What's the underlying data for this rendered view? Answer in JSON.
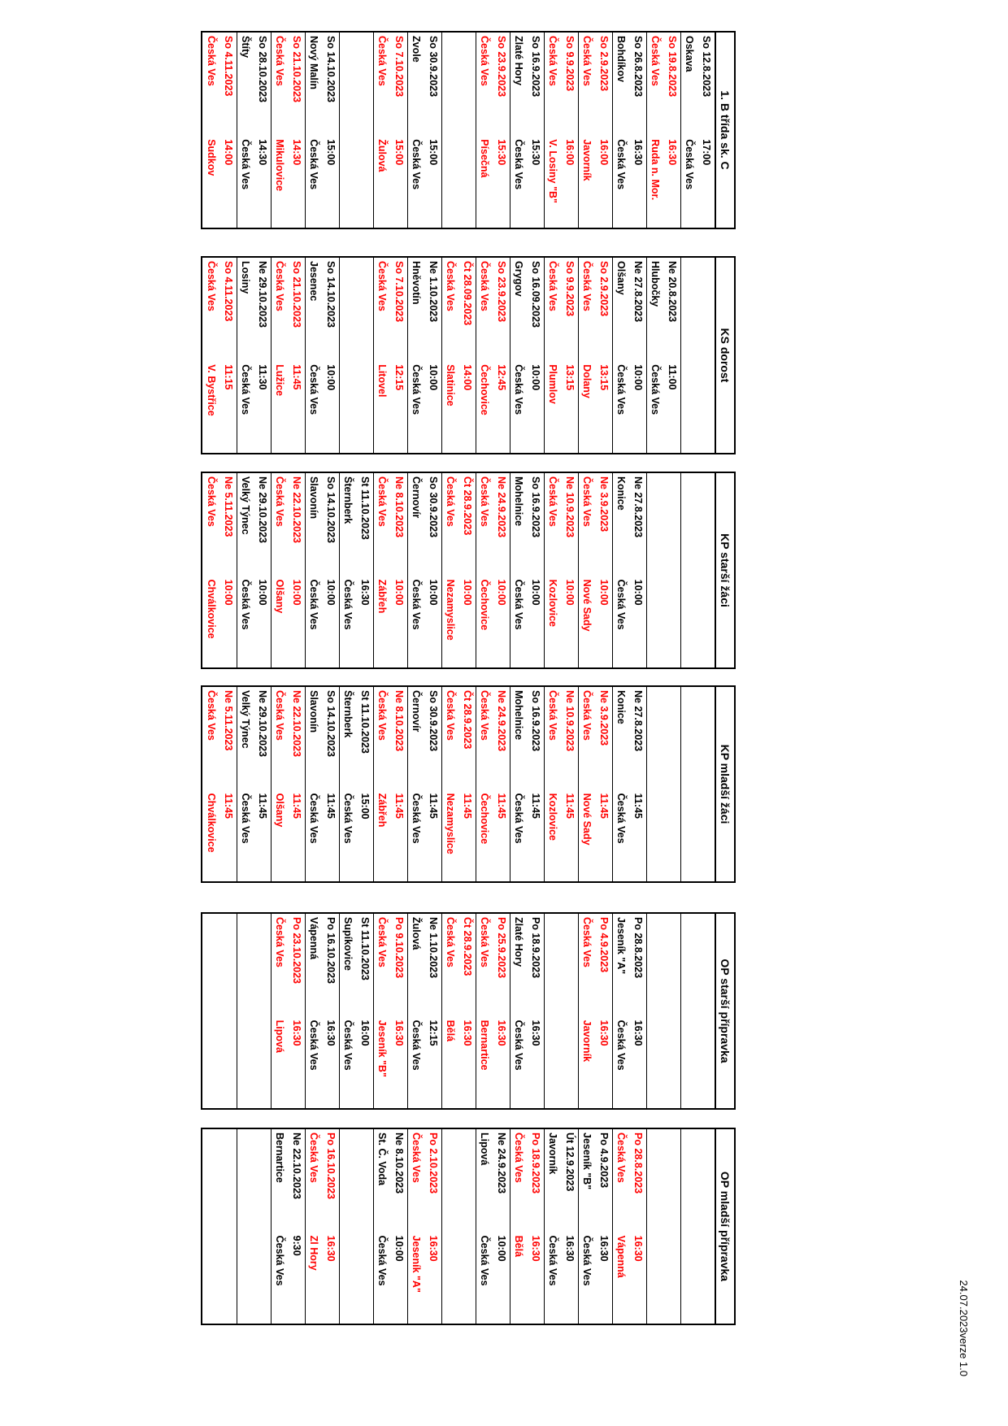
{
  "version_note": "24.07.2023verze 1.0",
  "home_color": "#ff0000",
  "tables": [
    {
      "title": "1. B třída sk. C",
      "rows": [
        {
          "date": "So 12.8.2023",
          "place": "Oskava",
          "time": "17:00",
          "venue": "Česká Ves",
          "home": false
        },
        {
          "date": "So 19.8.2023",
          "place": "Česká Ves",
          "time": "16:30",
          "venue": "Ruda n. Mor.",
          "home": true
        },
        {
          "date": "So 26.8.2023",
          "place": "Bohdíkov",
          "time": "16:30",
          "venue": "Česká Ves",
          "home": false
        },
        {
          "date": "So 2.9.2023",
          "place": "Česká Ves",
          "time": "16:00",
          "venue": "Javorník",
          "home": true
        },
        {
          "date": "So 9.9.2023",
          "place": "Česká Ves",
          "time": "16:00",
          "venue": "V. Losiny \"B\"",
          "home": true
        },
        {
          "date": "So 16.9.2023",
          "place": "Zlaté Hory",
          "time": "15:30",
          "venue": "Česká Ves",
          "home": false
        },
        {
          "date": "So 23.9.2023",
          "place": "Česká Ves",
          "time": "15:30",
          "venue": "Písečná",
          "home": true
        },
        {
          "date": "",
          "place": "",
          "time": "",
          "venue": "",
          "home": false
        },
        {
          "date": "So 30.9.2023",
          "place": "Zvole",
          "time": "15:00",
          "venue": "Česká Ves",
          "home": false
        },
        {
          "date": "So 7.10.2023",
          "place": "Česká Ves",
          "time": "15:00",
          "venue": "Žulová",
          "home": true
        },
        {
          "date": "",
          "place": "",
          "time": "",
          "venue": "",
          "home": false
        },
        {
          "date": "So 14.10.2023",
          "place": "Nový Malín",
          "time": "15:00",
          "venue": "Česká Ves",
          "home": false
        },
        {
          "date": "So 21.10.2023",
          "place": "Česká Ves",
          "time": "14:30",
          "venue": "Mikulovice",
          "home": true
        },
        {
          "date": "So 28.10.2023",
          "place": "Štíty",
          "time": "14:30",
          "venue": "Česká Ves",
          "home": false
        },
        {
          "date": "So 4.11.2023",
          "place": "Česká Ves",
          "time": "14:00",
          "venue": "Sudkov",
          "home": true
        }
      ]
    },
    {
      "title": "KS dorost",
      "rows": [
        {
          "date": "",
          "place": "",
          "time": "",
          "venue": "",
          "home": false
        },
        {
          "date": "Ne 20.8.2023",
          "place": "Hlubočky",
          "time": "11:00",
          "venue": "Česká Ves",
          "home": false
        },
        {
          "date": "Ne 27.8.2023",
          "place": "Olšany",
          "time": "10:00",
          "venue": "Česká Ves",
          "home": false
        },
        {
          "date": "So 2.9.2023",
          "place": "Česká Ves",
          "time": "13:15",
          "venue": "Dolany",
          "home": true
        },
        {
          "date": "So 9.9.2023",
          "place": "Česká Ves",
          "time": "13:15",
          "venue": "Plumlov",
          "home": true
        },
        {
          "date": "So 16.09.2023",
          "place": "Grygov",
          "time": "10:00",
          "venue": "Česká Ves",
          "home": false
        },
        {
          "date": "So 23.9.2023",
          "place": "Česká Ves",
          "time": "12:45",
          "venue": "Čechovice",
          "home": true
        },
        {
          "date": "Čt 28.09.2023",
          "place": "Česká Ves",
          "time": "14:00",
          "venue": "Slatinice",
          "home": true
        },
        {
          "date": "Ne 1.10.2023",
          "place": "Hněvotín",
          "time": "10:00",
          "venue": "Česká Ves",
          "home": false
        },
        {
          "date": "So 7.10.2023",
          "place": "Česká Ves",
          "time": "12:15",
          "venue": "Litovel",
          "home": true
        },
        {
          "date": "",
          "place": "",
          "time": "",
          "venue": "",
          "home": false
        },
        {
          "date": "So 14.10.2023",
          "place": "Jesenec",
          "time": "10:00",
          "venue": "Česká Ves",
          "home": false
        },
        {
          "date": "So 21.10.2023",
          "place": "Česká Ves",
          "time": "11:45",
          "venue": "Lužice",
          "home": true
        },
        {
          "date": "Ne 29.10.2023",
          "place": "Losiny",
          "time": "11:30",
          "venue": "Česká Ves",
          "home": false
        },
        {
          "date": "So 4.11.2023",
          "place": "Česká Ves",
          "time": "11:15",
          "venue": "V. Bystřice",
          "home": true
        }
      ]
    },
    {
      "title": "KP starší žáci",
      "rows": [
        {
          "date": "",
          "place": "",
          "time": "",
          "venue": "",
          "home": false
        },
        {
          "date": "",
          "place": "",
          "time": "",
          "venue": "",
          "home": false
        },
        {
          "date": "Ne 27.8.2023",
          "place": "Konice",
          "time": "10:00",
          "venue": "Česká Ves",
          "home": false
        },
        {
          "date": "Ne 3.9.2023",
          "place": "Česká Ves",
          "time": "10:00",
          "venue": "Nové Sady",
          "home": true
        },
        {
          "date": "Ne 10.9.2023",
          "place": "Česká Ves",
          "time": "10:00",
          "venue": "Kozlovice",
          "home": true
        },
        {
          "date": "So 16.9.2023",
          "place": "Mohelnice",
          "time": "10:00",
          "venue": "Česká Ves",
          "home": false
        },
        {
          "date": "Ne 24.9.2023",
          "place": "Česká Ves",
          "time": "10:00",
          "venue": "Čechovice",
          "home": true
        },
        {
          "date": "Čt 28.9.2023",
          "place": "Česká Ves",
          "time": "10:00",
          "venue": "Nezamyslice",
          "home": true
        },
        {
          "date": "So 30.9.2023",
          "place": "Černovír",
          "time": "10:00",
          "venue": "Česká Ves",
          "home": false
        },
        {
          "date": "Ne 8.10.2023",
          "place": "Česká Ves",
          "time": "10:00",
          "venue": "Zábřeh",
          "home": true
        },
        {
          "date": "St 11.10.2023",
          "place": "Šternberk",
          "time": "16:30",
          "venue": "Česká Ves",
          "home": false
        },
        {
          "date": "So 14.10.2023",
          "place": "Slavonín",
          "time": "10:00",
          "venue": "Česká Ves",
          "home": false
        },
        {
          "date": "Ne 22.10.2023",
          "place": "Česká Ves",
          "time": "10:00",
          "venue": "Olšany",
          "home": true
        },
        {
          "date": "Ne 29.10.2023",
          "place": "Velký Týnec",
          "time": "10:00",
          "venue": "Česká Ves",
          "home": false
        },
        {
          "date": "Ne 5.11.2023",
          "place": "Česká Ves",
          "time": "10:00",
          "venue": "Chválkovice",
          "home": true
        }
      ]
    },
    {
      "title": "KP mladší žáci",
      "rows": [
        {
          "date": "",
          "place": "",
          "time": "",
          "venue": "",
          "home": false
        },
        {
          "date": "",
          "place": "",
          "time": "",
          "venue": "",
          "home": false
        },
        {
          "date": "Ne 27.8.2023",
          "place": "Konice",
          "time": "11:45",
          "venue": "Česká Ves",
          "home": false
        },
        {
          "date": "Ne 3.9.2023",
          "place": "Česká Ves",
          "time": "11:45",
          "venue": "Nové Sady",
          "home": true
        },
        {
          "date": "Ne 10.9.2023",
          "place": "Česká Ves",
          "time": "11:45",
          "venue": "Kozlovice",
          "home": true
        },
        {
          "date": "So 16.9.2023",
          "place": "Mohelnice",
          "time": "11:45",
          "venue": "Česká Ves",
          "home": false
        },
        {
          "date": "Ne 24.9.2023",
          "place": "Česká Ves",
          "time": "11:45",
          "venue": "Čechovice",
          "home": true
        },
        {
          "date": "Čt 28.9.2023",
          "place": "Česká Ves",
          "time": "11:45",
          "venue": "Nezamyslice",
          "home": true
        },
        {
          "date": "So 30.9.2023",
          "place": "Černovír",
          "time": "11:45",
          "venue": "Česká Ves",
          "home": false
        },
        {
          "date": "Ne 8.10.2023",
          "place": "Česká Ves",
          "time": "11:45",
          "venue": "Zábřeh",
          "home": true
        },
        {
          "date": "St 11.10.2023",
          "place": "Šternberk",
          "time": "15:00",
          "venue": "Česká Ves",
          "home": false
        },
        {
          "date": "So 14.10.2023",
          "place": "Slavonín",
          "time": "11:45",
          "venue": "Česká Ves",
          "home": false
        },
        {
          "date": "Ne 22.10.2023",
          "place": "Česká Ves",
          "time": "11:45",
          "venue": "Olšany",
          "home": true
        },
        {
          "date": "Ne 29.10.2023",
          "place": "Velký Týnec",
          "time": "11:45",
          "venue": "Česká Ves",
          "home": false
        },
        {
          "date": "Ne 5.11.2023",
          "place": "Česká Ves",
          "time": "11:45",
          "venue": "Chválkovice",
          "home": true
        }
      ]
    },
    {
      "title": "OP starší přípravka",
      "rows": [
        {
          "date": "",
          "place": "",
          "time": "",
          "venue": "",
          "home": false
        },
        {
          "date": "",
          "place": "",
          "time": "",
          "venue": "",
          "home": false
        },
        {
          "date": "Po 28.8.2023",
          "place": "Jeseník \"A\"",
          "time": "16:30",
          "venue": "Česká Ves",
          "home": false
        },
        {
          "date": "Po 4.9.2023",
          "place": "Česká Ves",
          "time": "16:30",
          "venue": "Javorník",
          "home": true
        },
        {
          "date": "",
          "place": "",
          "time": "",
          "venue": "",
          "home": false
        },
        {
          "date": "Po 18.9.2023",
          "place": "Zlaté Hory",
          "time": "16:30",
          "venue": "Česká Ves",
          "home": false
        },
        {
          "date": "Po 25.9.2023",
          "place": "Česká Ves",
          "time": "16:30",
          "venue": "Bernartice",
          "home": true
        },
        {
          "date": "Čt 28.9.2023",
          "place": "Česká Ves",
          "time": "16:30",
          "venue": "Bělá",
          "home": true
        },
        {
          "date": "Ne 1.10.2023",
          "place": "Žulová",
          "time": "12:15",
          "venue": "Česká Ves",
          "home": false
        },
        {
          "date": "Po 9.10.2023",
          "place": "Česká Ves",
          "time": "16:30",
          "venue": "Jeseník \"B\"",
          "home": true
        },
        {
          "date": "St 11.10.2023",
          "place": "Supíkovice",
          "time": "16:00",
          "venue": "Česká Ves",
          "home": false
        },
        {
          "date": "Po 16.10.2023",
          "place": "Vápenná",
          "time": "16:30",
          "venue": "Česká Ves",
          "home": false
        },
        {
          "date": "Po 23.10.2023",
          "place": "Česká Ves",
          "time": "16:30",
          "venue": "Lipová",
          "home": true
        },
        {
          "date": "",
          "place": "",
          "time": "",
          "venue": "",
          "home": false
        },
        {
          "date": "",
          "place": "",
          "time": "",
          "venue": "",
          "home": false
        }
      ]
    },
    {
      "title": "OP mladší přípravka",
      "rows": [
        {
          "date": "",
          "place": "",
          "time": "",
          "venue": "",
          "home": false
        },
        {
          "date": "",
          "place": "",
          "time": "",
          "venue": "",
          "home": false
        },
        {
          "date": "Po 28.8.2023",
          "place": "Česká Ves",
          "time": "16:30",
          "venue": "Vápenná",
          "home": true
        },
        {
          "date": "Po 4.9.2023",
          "place": "Jeseník \"B\"",
          "time": "16:30",
          "venue": "Česká Ves",
          "home": false
        },
        {
          "date": "Út 12.9.2023",
          "place": "Javorník",
          "time": "16:30",
          "venue": "Česká Ves",
          "home": false
        },
        {
          "date": "Po 18.9.2023",
          "place": "Česká Ves",
          "time": "16:30",
          "venue": "Bělá",
          "home": true
        },
        {
          "date": "Ne 24.9.2023",
          "place": "Lipová",
          "time": "10:00",
          "venue": "Česká Ves",
          "home": false
        },
        {
          "date": "",
          "place": "",
          "time": "",
          "venue": "",
          "home": false
        },
        {
          "date": "Po 2.10.2023",
          "place": "Česká Ves",
          "time": "16:30",
          "venue": "Jeseník \"A\"",
          "home": true
        },
        {
          "date": "Ne 8.10.2023",
          "place": "St. Č. Voda",
          "time": "10:00",
          "venue": "Česká Ves",
          "home": false
        },
        {
          "date": "",
          "place": "",
          "time": "",
          "venue": "",
          "home": false
        },
        {
          "date": "Po 16.10.2023",
          "place": "Česká Ves",
          "time": "16:30",
          "venue": "Zl Hory",
          "home": true
        },
        {
          "date": "Ne 22.10.2023",
          "place": "Bernartice",
          "time": "9:30",
          "venue": "Česká Ves",
          "home": false
        },
        {
          "date": "",
          "place": "",
          "time": "",
          "venue": "",
          "home": false
        },
        {
          "date": "",
          "place": "",
          "time": "",
          "venue": "",
          "home": false
        }
      ]
    }
  ]
}
